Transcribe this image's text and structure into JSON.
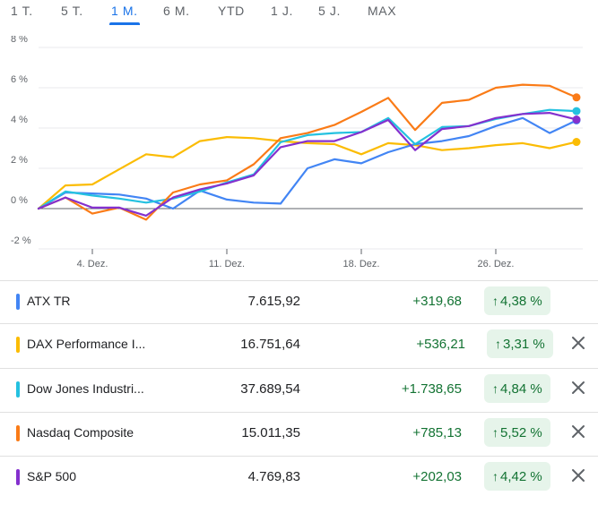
{
  "range_tabs": [
    "1 T.",
    "5 T.",
    "1 M.",
    "6 M.",
    "YTD",
    "1 J.",
    "5 J.",
    "MAX"
  ],
  "active_tab": "1 M.",
  "chart_data": {
    "type": "line",
    "y_ticks": [
      "8 %",
      "6 %",
      "4 %",
      "2 %",
      "0 %",
      "-2 %"
    ],
    "x_ticks": [
      "4. Dez.",
      "11. Dez.",
      "18. Dez.",
      "26. Dez."
    ],
    "ylim": [
      -2,
      8
    ],
    "grid": true,
    "series": [
      {
        "name": "ATX TR",
        "color": "#4285f4",
        "values": [
          0,
          0.8,
          0.75,
          0.7,
          0.5,
          0,
          0.9,
          0.45,
          0.3,
          0.25,
          2.0,
          2.45,
          2.25,
          2.8,
          3.2,
          3.35,
          3.6,
          4.1,
          4.5,
          3.75,
          4.38
        ]
      },
      {
        "name": "DAX Performance I...",
        "color": "#fbbc04",
        "values": [
          0,
          1.15,
          1.2,
          1.95,
          2.7,
          2.55,
          3.35,
          3.55,
          3.5,
          3.35,
          3.25,
          3.2,
          2.7,
          3.25,
          3.15,
          2.9,
          3.0,
          3.15,
          3.25,
          3.0,
          3.31
        ]
      },
      {
        "name": "Dow Jones Industri...",
        "color": "#24c1e0",
        "values": [
          0,
          0.85,
          0.65,
          0.5,
          0.3,
          0.5,
          0.85,
          1.3,
          1.7,
          3.3,
          3.65,
          3.75,
          3.8,
          4.5,
          3.2,
          4.05,
          4.1,
          4.45,
          4.7,
          4.9,
          4.84
        ]
      },
      {
        "name": "Nasdaq Composite",
        "color": "#fa7b17",
        "values": [
          0,
          0.55,
          -0.25,
          0.05,
          -0.55,
          0.8,
          1.2,
          1.4,
          2.2,
          3.5,
          3.75,
          4.15,
          4.8,
          5.5,
          3.9,
          5.25,
          5.4,
          6.0,
          6.15,
          6.1,
          5.52
        ]
      },
      {
        "name": "S&P 500",
        "color": "#8430ce",
        "values": [
          0,
          0.55,
          0.05,
          0.05,
          -0.35,
          0.55,
          0.95,
          1.25,
          1.65,
          3.05,
          3.35,
          3.35,
          3.8,
          4.4,
          2.9,
          3.95,
          4.1,
          4.5,
          4.7,
          4.75,
          4.42
        ]
      }
    ]
  },
  "rows": [
    {
      "name": "ATX TR",
      "color": "#4285f4",
      "price": "7.615,92",
      "change": "+319,68",
      "pct": "4,38 %",
      "removable": false
    },
    {
      "name": "DAX Performance I...",
      "color": "#fbbc04",
      "price": "16.751,64",
      "change": "+536,21",
      "pct": "3,31 %",
      "removable": true
    },
    {
      "name": "Dow Jones Industri...",
      "color": "#24c1e0",
      "price": "37.689,54",
      "change": "+1.738,65",
      "pct": "4,84 %",
      "removable": true
    },
    {
      "name": "Nasdaq Composite",
      "color": "#fa7b17",
      "price": "15.011,35",
      "change": "+785,13",
      "pct": "5,52 %",
      "removable": true
    },
    {
      "name": "S&P 500",
      "color": "#8430ce",
      "price": "4.769,83",
      "change": "+202,03",
      "pct": "4,42 %",
      "removable": true
    }
  ],
  "icons": {
    "up_arrow": "arrow-up-icon",
    "close": "close-icon"
  }
}
